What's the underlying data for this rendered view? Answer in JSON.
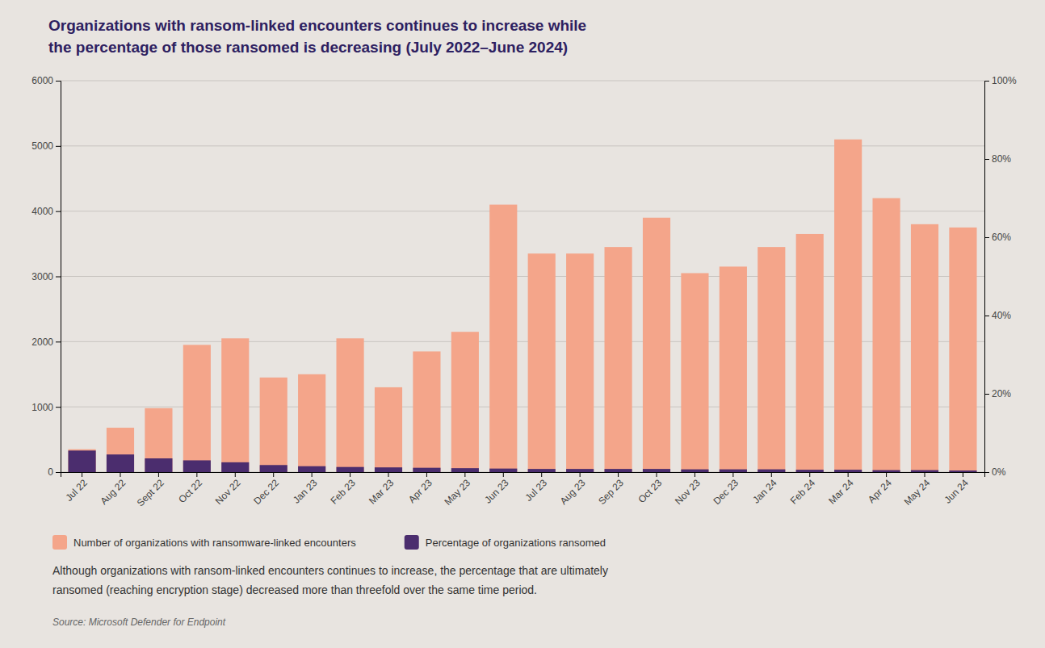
{
  "chart_data": {
    "type": "bar",
    "title": [
      "Organizations with ransom-linked encounters continues to increase while",
      "the percentage of those ransomed is decreasing (July 2022–June 2024)"
    ],
    "categories": [
      "Jul 22",
      "Aug 22",
      "Sept 22",
      "Oct 22",
      "Nov 22",
      "Dec 22",
      "Jan 23",
      "Feb 23",
      "Mar 23",
      "Apr 23",
      "May 23",
      "Jun 23",
      "Jul 23",
      "Aug 23",
      "Sep 23",
      "Oct 23",
      "Nov 23",
      "Dec 23",
      "Jan 24",
      "Feb 24",
      "Mar 24",
      "Apr 24",
      "May 24",
      "Jun 24"
    ],
    "series": [
      {
        "name": "Number of organizations with ransomware-linked encounters",
        "color": "#F4A58A",
        "values": [
          350,
          680,
          980,
          1950,
          2050,
          1450,
          1500,
          2050,
          1300,
          1850,
          2150,
          4100,
          3350,
          3350,
          3450,
          3900,
          3050,
          3150,
          3450,
          3650,
          5100,
          4200,
          3800,
          3750
        ]
      },
      {
        "name": "Percentage of organizations ransomed",
        "color": "#4B2D6E",
        "axis": "y2",
        "values": [
          5.5,
          4.5,
          3.5,
          3.0,
          2.5,
          1.8,
          1.5,
          1.3,
          1.2,
          1.1,
          1.0,
          0.9,
          0.8,
          0.8,
          0.8,
          0.8,
          0.7,
          0.7,
          0.7,
          0.6,
          0.6,
          0.5,
          0.5,
          0.4
        ]
      }
    ],
    "ylim": [
      0,
      6000
    ],
    "yticks": [
      0,
      1000,
      2000,
      3000,
      4000,
      5000,
      6000
    ],
    "y2lim": [
      0,
      100
    ],
    "y2ticks": [
      {
        "value": 0,
        "label": "0%"
      },
      {
        "value": 20,
        "label": "20%"
      },
      {
        "value": 40,
        "label": "40%"
      },
      {
        "value": 60,
        "label": "60%"
      },
      {
        "value": 80,
        "label": "80%"
      },
      {
        "value": 100,
        "label": "100%"
      }
    ],
    "grid": true,
    "legend": "bottom",
    "annotations": [
      "Although organizations with ransom-linked encounters continues to increase, the percentage that are ultimately",
      "ransomed (reaching encryption stage) decreased more than threefold over the same time period.",
      "Source: Microsoft Defender for Endpoint"
    ]
  }
}
